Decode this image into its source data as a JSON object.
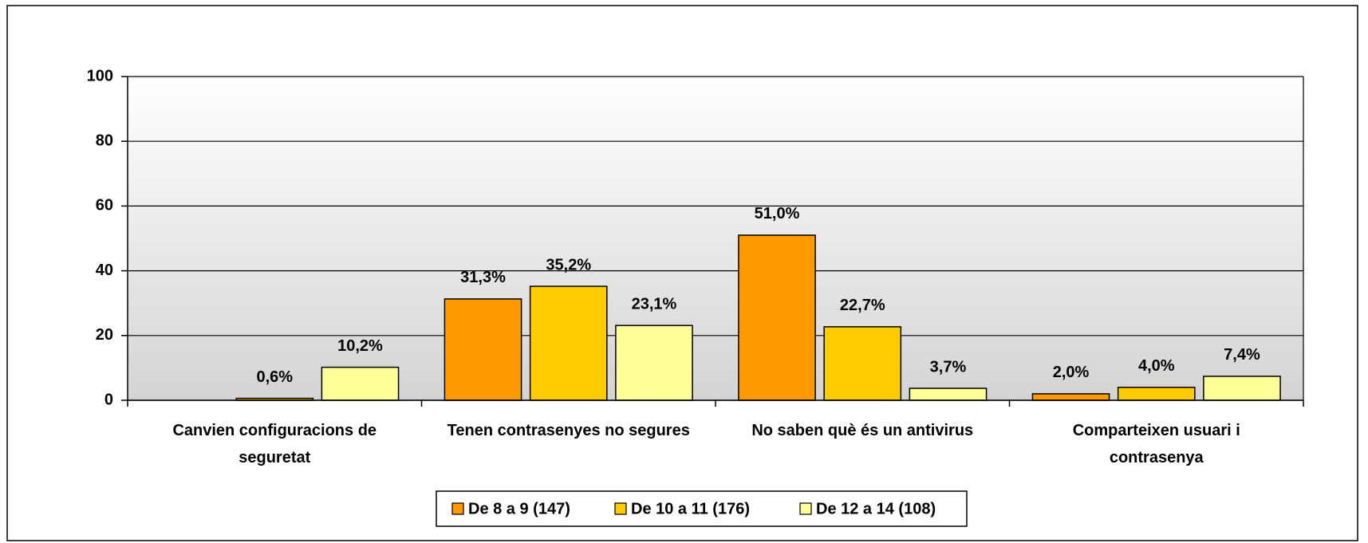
{
  "chart_data": {
    "type": "bar",
    "categories": [
      "Canvien configuracions de seguretat",
      "Tenen contrasenyes no segures",
      "No saben què és un antivirus",
      "Comparteixen usuari i contrasenya"
    ],
    "series": [
      {
        "name": "De 8 a 9 (147)",
        "color": "#FF9900",
        "values": [
          null,
          31.3,
          51.0,
          2.0
        ],
        "value_labels": [
          null,
          "31,3%",
          "51,0%",
          "2,0%"
        ]
      },
      {
        "name": "De 10 a 11 (176)",
        "color": "#FFCC00",
        "values": [
          0.6,
          35.2,
          22.7,
          4.0
        ],
        "value_labels": [
          "0,6%",
          "35,2%",
          "22,7%",
          "4,0%"
        ]
      },
      {
        "name": "De 12 a 14 (108)",
        "color": "#FFFF99",
        "values": [
          10.2,
          23.1,
          3.7,
          7.4
        ],
        "value_labels": [
          "10,2%",
          "23,1%",
          "3,7%",
          "7,4%"
        ]
      }
    ],
    "ylim": [
      0,
      100
    ],
    "yticks": [
      0,
      20,
      40,
      60,
      80,
      100
    ],
    "grid": true,
    "legend": "bottom"
  }
}
